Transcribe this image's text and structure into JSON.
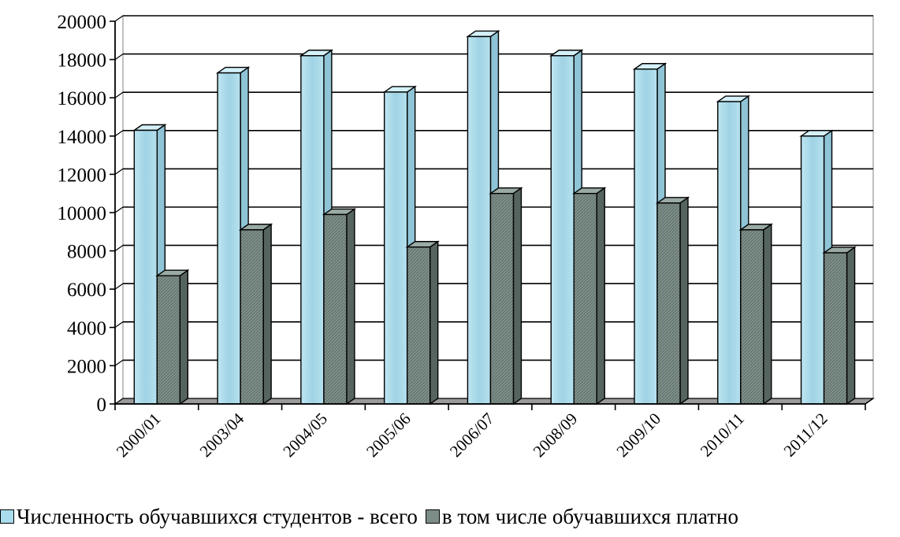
{
  "chart_data": {
    "type": "bar",
    "categories": [
      "2000/01",
      "2003/04",
      "2004/05",
      "2005/06",
      "2006/07",
      "2008/09",
      "2009/10",
      "2010/11",
      "2011/12"
    ],
    "series": [
      {
        "name": "Численность обучавшихся студентов - всего",
        "values": [
          14300,
          17300,
          18200,
          16300,
          19200,
          18200,
          17500,
          15800,
          14000
        ],
        "color": "#a9dcec"
      },
      {
        "name": "в том числе обучавшихся платно",
        "values": [
          6700,
          9100,
          9900,
          8200,
          11000,
          11000,
          10500,
          9100,
          7900
        ],
        "color": "#7c8c86"
      }
    ],
    "yticks": [
      "0",
      "2000",
      "4000",
      "6000",
      "8000",
      "10000",
      "12000",
      "14000",
      "16000",
      "18000",
      "20000"
    ],
    "ylim": [
      0,
      20000
    ],
    "grid": true,
    "legend_position": "bottom",
    "title": "",
    "xlabel": "",
    "ylabel": ""
  }
}
